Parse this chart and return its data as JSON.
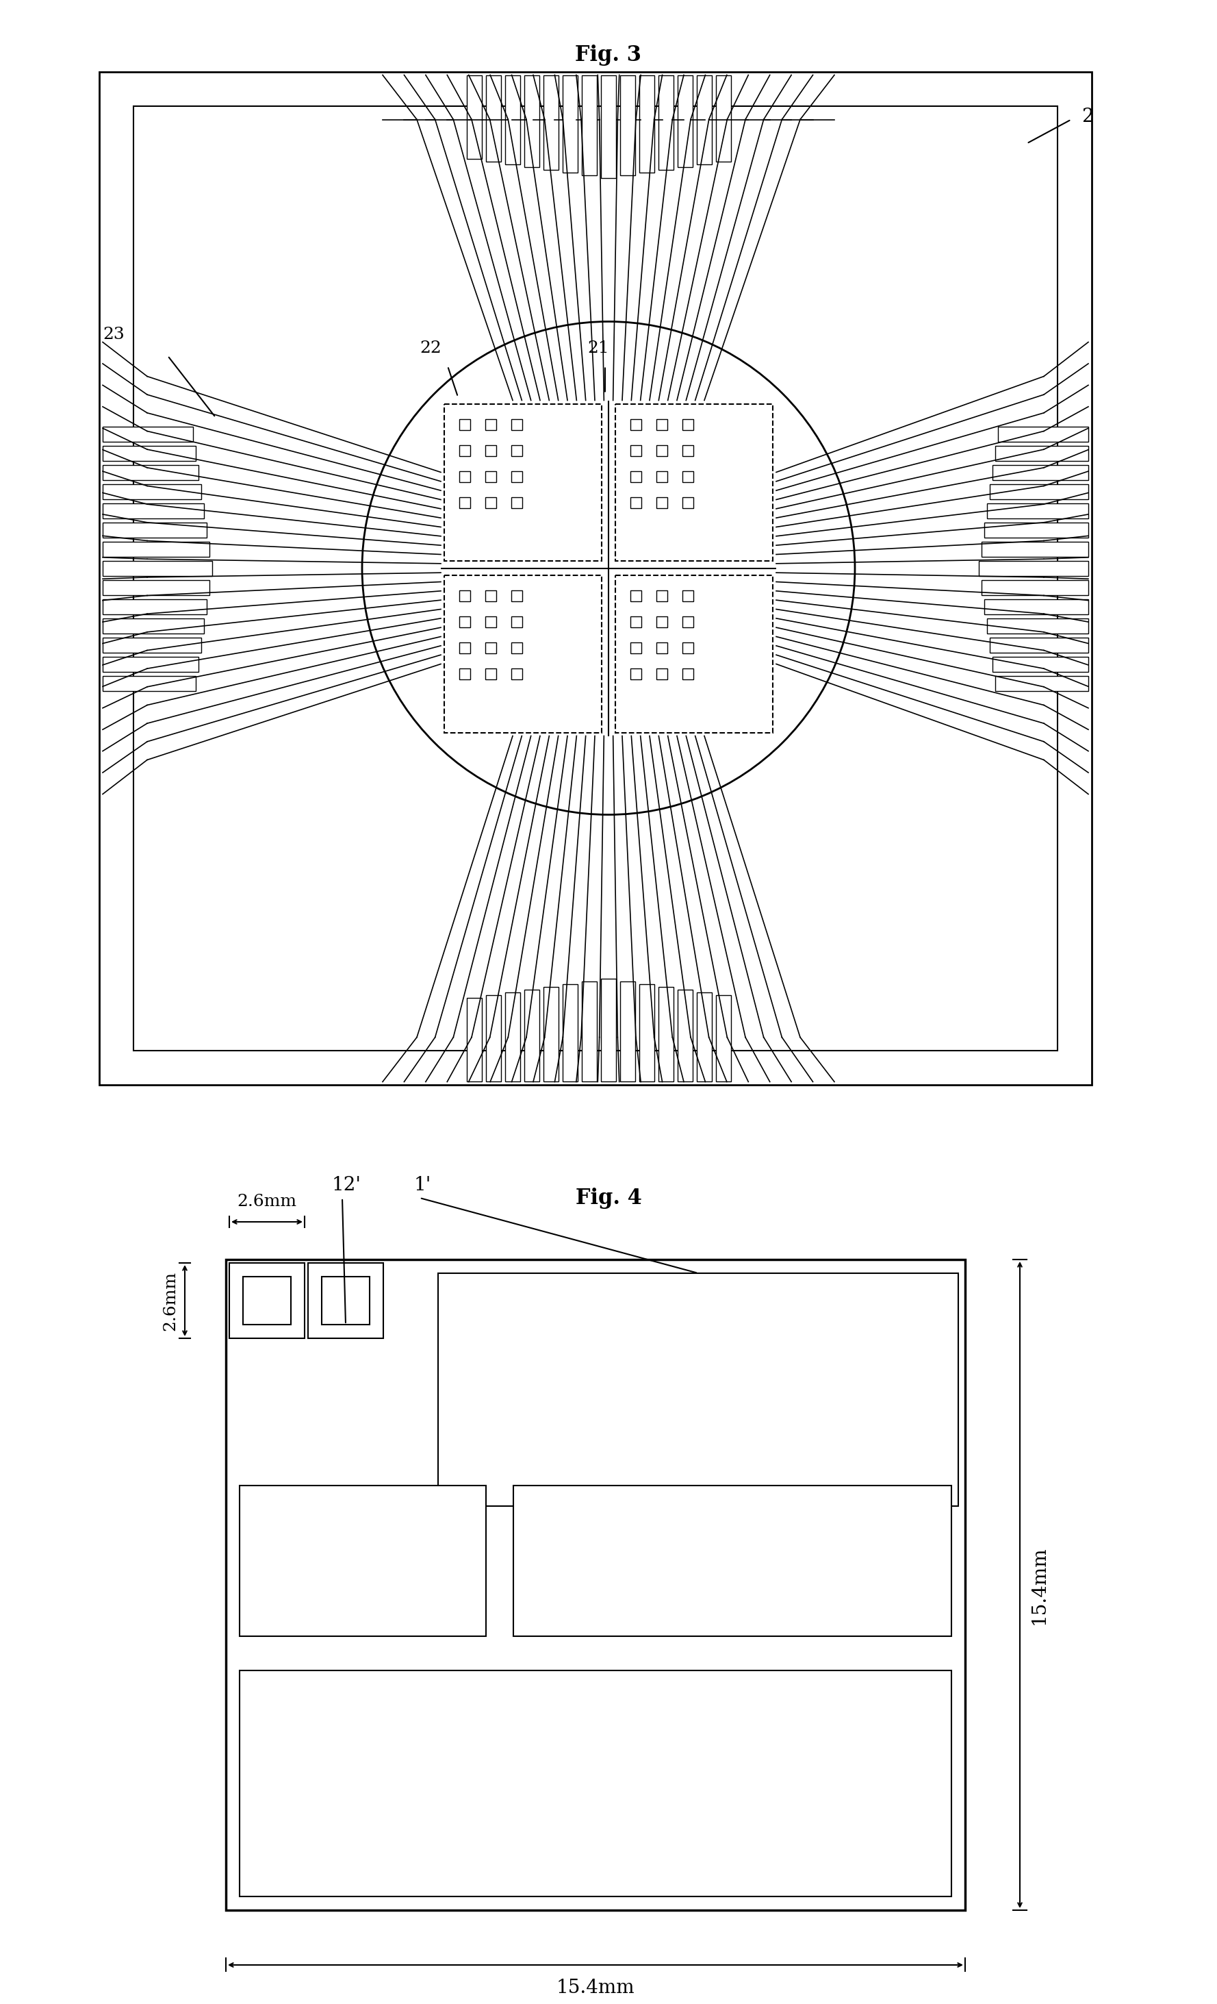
{
  "fig3_title": "Fig. 3",
  "fig4_title": "Fig. 4",
  "bg_color": "#ffffff",
  "line_color": "#000000",
  "fig3_label_2": "2",
  "fig3_label_21": "21",
  "fig3_label_22": "22",
  "fig3_label_23": "23",
  "fig4_label_1prime": "1'",
  "fig4_label_12prime": "12'",
  "fig4_dim_26mm_h": "2.6mm",
  "fig4_dim_26mm_w": "2.6mm",
  "fig4_dim_154mm_w": "15.4mm",
  "fig4_dim_154mm_h": "15.4mm"
}
